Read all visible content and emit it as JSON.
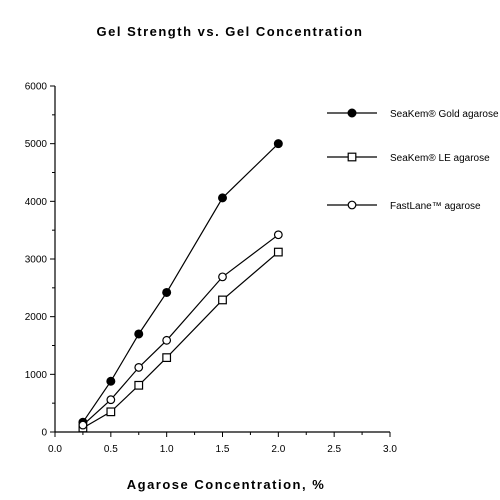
{
  "chart_data": {
    "type": "line",
    "title": "Gel Strength vs. Gel Concentration",
    "xlabel": "Agarose Concentration, %",
    "ylabel": "",
    "xlim": [
      0.0,
      3.0
    ],
    "ylim": [
      0,
      6000
    ],
    "x_ticks": [
      "0.0",
      "0.5",
      "1.0",
      "1.5",
      "2.0",
      "2.5",
      "3.0"
    ],
    "y_ticks": [
      "0",
      "1000",
      "2000",
      "3000",
      "4000",
      "5000",
      "6000"
    ],
    "grid": false,
    "legend_position": "right",
    "series": [
      {
        "name": "SeaKem® Gold agarose",
        "marker": "filled-circle",
        "x": [
          0.25,
          0.5,
          0.75,
          1.0,
          1.5,
          2.0
        ],
        "y": [
          170,
          880,
          1700,
          2420,
          4060,
          5000
        ]
      },
      {
        "name": "SeaKem® LE agarose",
        "marker": "open-square",
        "x": [
          0.25,
          0.5,
          0.75,
          1.0,
          1.5,
          2.0
        ],
        "y": [
          70,
          350,
          810,
          1290,
          2290,
          3120
        ]
      },
      {
        "name": "FastLane™ agarose",
        "marker": "open-circle",
        "x": [
          0.25,
          0.5,
          0.75,
          1.0,
          1.5,
          2.0
        ],
        "y": [
          120,
          560,
          1120,
          1590,
          2690,
          3420
        ]
      }
    ]
  }
}
